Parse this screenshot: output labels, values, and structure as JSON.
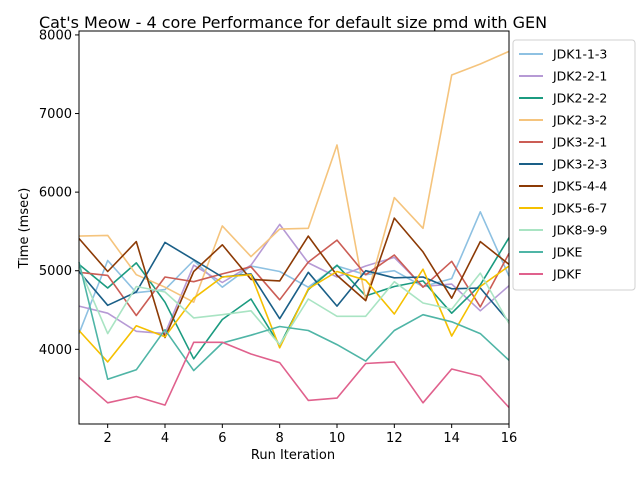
{
  "chart_data": {
    "type": "line",
    "title": "Cat's Meow - 4 core Performance for default size pmd with GEN",
    "xlabel": "Run Iteration",
    "ylabel": "Time (msec)",
    "xlim": [
      1,
      16
    ],
    "ylim": [
      3050,
      8050
    ],
    "xticks": [
      2,
      4,
      6,
      8,
      10,
      12,
      14,
      16
    ],
    "yticks": [
      4000,
      5000,
      6000,
      7000,
      8000
    ],
    "x": [
      1,
      2,
      3,
      4,
      5,
      6,
      7,
      8,
      9,
      10,
      11,
      12,
      13,
      14,
      15,
      16
    ],
    "legend_position": "outside-right",
    "grid": false,
    "series": [
      {
        "name": "JDK1-1-3",
        "color": "#8ec1e2",
        "values": [
          4200,
          5130,
          4720,
          4760,
          5130,
          4790,
          5060,
          4990,
          4790,
          5060,
          4950,
          5000,
          4800,
          4900,
          5750,
          4930
        ]
      },
      {
        "name": "JDK2-2-1",
        "color": "#b69ad5",
        "values": [
          4550,
          4460,
          4230,
          4200,
          5070,
          4850,
          5070,
          5590,
          5100,
          4920,
          5060,
          5170,
          4800,
          4830,
          4490,
          4810
        ]
      },
      {
        "name": "JDK2-2-2",
        "color": "#1b9b80",
        "values": [
          5080,
          4780,
          5100,
          4600,
          3880,
          4380,
          4640,
          4050,
          4760,
          5070,
          4680,
          4800,
          4870,
          4460,
          4820,
          5420
        ]
      },
      {
        "name": "JDK2-3-2",
        "color": "#f5c47d",
        "values": [
          5440,
          5450,
          4950,
          4790,
          4600,
          5570,
          5180,
          5530,
          5540,
          6600,
          4620,
          5930,
          5540,
          7490,
          7630,
          7790
        ]
      },
      {
        "name": "JDK3-2-1",
        "color": "#cb5d55",
        "values": [
          4980,
          4940,
          4430,
          4920,
          4860,
          4960,
          5050,
          4630,
          5110,
          5390,
          4950,
          5200,
          4790,
          5120,
          4540,
          5220
        ]
      },
      {
        "name": "JDK3-2-3",
        "color": "#1a5f87",
        "values": [
          4990,
          4560,
          4730,
          5360,
          5140,
          4920,
          4960,
          4390,
          4980,
          4550,
          5000,
          4910,
          4920,
          4770,
          4780,
          4350
        ]
      },
      {
        "name": "JDK5-4-4",
        "color": "#8c3a05",
        "values": [
          5410,
          4990,
          5370,
          4150,
          4990,
          5330,
          4890,
          4870,
          5440,
          4940,
          4620,
          5670,
          5240,
          4650,
          5370,
          5080
        ]
      },
      {
        "name": "JDK5-6-7",
        "color": "#f5c000",
        "values": [
          4240,
          3840,
          4300,
          4160,
          4650,
          4920,
          4950,
          4020,
          4770,
          4990,
          4880,
          4450,
          5020,
          4170,
          4800,
          5060
        ]
      },
      {
        "name": "JDK8-9-9",
        "color": "#a9e4c3",
        "values": [
          5050,
          4200,
          4800,
          4730,
          4400,
          4440,
          4490,
          4060,
          4640,
          4420,
          4420,
          4860,
          4590,
          4510,
          4970,
          4330
        ]
      },
      {
        "name": "JDKE",
        "color": "#4fb5a6",
        "values": [
          5110,
          3620,
          3740,
          4250,
          3730,
          4080,
          4180,
          4290,
          4240,
          4060,
          3850,
          4240,
          4440,
          4350,
          4200,
          3860
        ]
      },
      {
        "name": "JDKF",
        "color": "#e0618d",
        "values": [
          3640,
          3320,
          3400,
          3290,
          4090,
          4090,
          3940,
          3830,
          3350,
          3380,
          3820,
          3840,
          3320,
          3750,
          3660,
          3260
        ]
      }
    ]
  }
}
